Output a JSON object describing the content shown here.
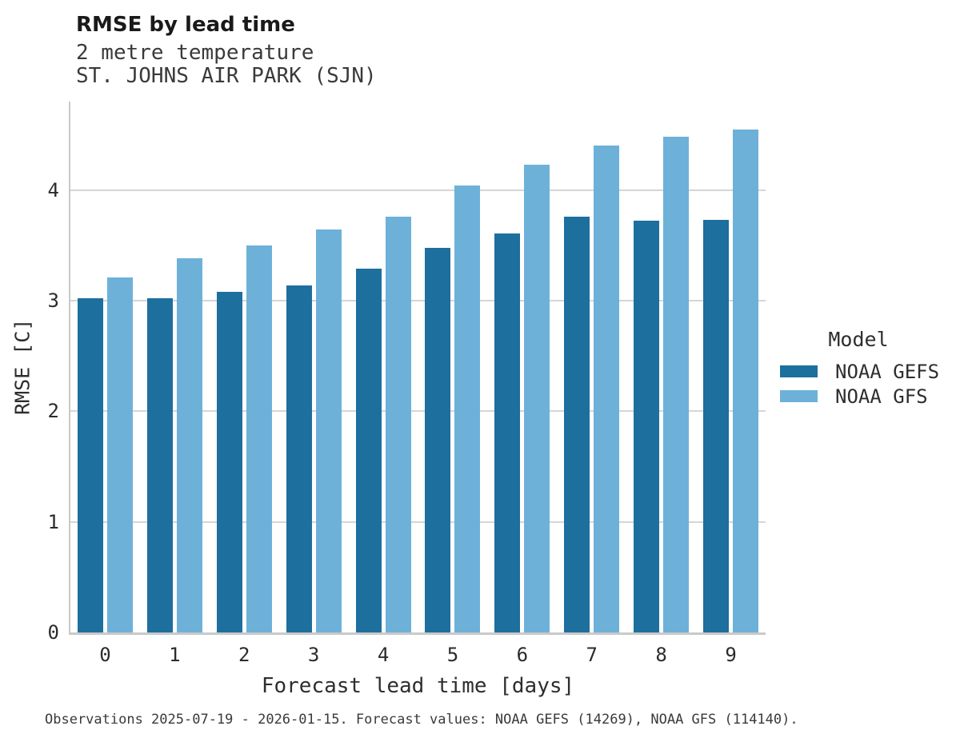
{
  "chart_data": {
    "type": "bar",
    "title": "RMSE by lead time",
    "subtitles": [
      "2 metre temperature",
      "ST. JOHNS AIR PARK (SJN)"
    ],
    "categories": [
      "0",
      "1",
      "2",
      "3",
      "4",
      "5",
      "6",
      "7",
      "8",
      "9"
    ],
    "series": [
      {
        "name": "NOAA GEFS",
        "color": "#1d6f9e",
        "values": [
          3.02,
          3.02,
          3.08,
          3.14,
          3.29,
          3.48,
          3.61,
          3.76,
          3.72,
          3.73
        ]
      },
      {
        "name": "NOAA GFS",
        "color": "#6db1d9",
        "values": [
          3.21,
          3.38,
          3.5,
          3.64,
          3.76,
          4.04,
          4.23,
          4.4,
          4.48,
          4.55
        ]
      }
    ],
    "xlabel": "Forecast lead time [days]",
    "ylabel": "RMSE [C]",
    "ylim": [
      0,
      4.8
    ],
    "yticks": [
      0,
      1,
      2,
      3,
      4
    ],
    "grid": true,
    "grid_color": "#d6d6d6",
    "legend": {
      "title": "Model",
      "position": "right"
    },
    "caption": "Observations 2025-07-19 - 2026-01-15. Forecast values: NOAA GEFS (14269), NOAA GFS (114140)."
  }
}
